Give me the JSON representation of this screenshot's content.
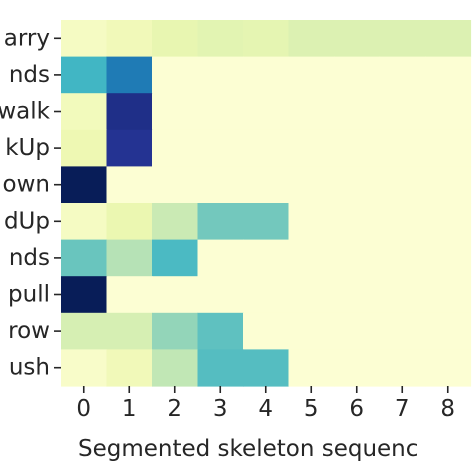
{
  "chart_data": {
    "type": "heatmap",
    "title": "",
    "xlabel": "Segmented skeleton sequenc",
    "ylabel": "",
    "x_tick_labels": [
      "0",
      "1",
      "2",
      "3",
      "4",
      "5",
      "6",
      "7",
      "8"
    ],
    "y_tick_labels": [
      "arry",
      "nds",
      "walk",
      "kUp",
      "own",
      "dUp",
      "nds",
      "pull",
      "row",
      "ush"
    ],
    "colormap": "YlGnBu",
    "value_range": [
      0,
      1
    ],
    "values": [
      [
        0.07,
        0.1,
        0.14,
        0.16,
        0.15,
        0.18,
        0.18,
        0.18,
        0.18
      ],
      [
        0.5,
        0.68,
        0.02,
        0.02,
        0.02,
        0.02,
        0.02,
        0.02,
        0.02
      ],
      [
        0.09,
        0.9,
        0.02,
        0.02,
        0.02,
        0.02,
        0.02,
        0.02,
        0.02
      ],
      [
        0.12,
        0.88,
        0.02,
        0.02,
        0.02,
        0.02,
        0.02,
        0.02,
        0.02
      ],
      [
        1.0,
        0.02,
        0.02,
        0.02,
        0.02,
        0.02,
        0.02,
        0.02,
        0.02
      ],
      [
        0.07,
        0.13,
        0.24,
        0.4,
        0.4,
        0.02,
        0.02,
        0.02,
        0.02
      ],
      [
        0.42,
        0.28,
        0.48,
        0.02,
        0.02,
        0.02,
        0.02,
        0.02,
        0.02
      ],
      [
        1.0,
        0.02,
        0.02,
        0.02,
        0.02,
        0.02,
        0.02,
        0.02,
        0.02
      ],
      [
        0.2,
        0.2,
        0.34,
        0.44,
        0.02,
        0.02,
        0.02,
        0.02,
        0.02
      ],
      [
        0.05,
        0.1,
        0.26,
        0.46,
        0.46,
        0.02,
        0.02,
        0.02,
        0.02
      ]
    ]
  }
}
